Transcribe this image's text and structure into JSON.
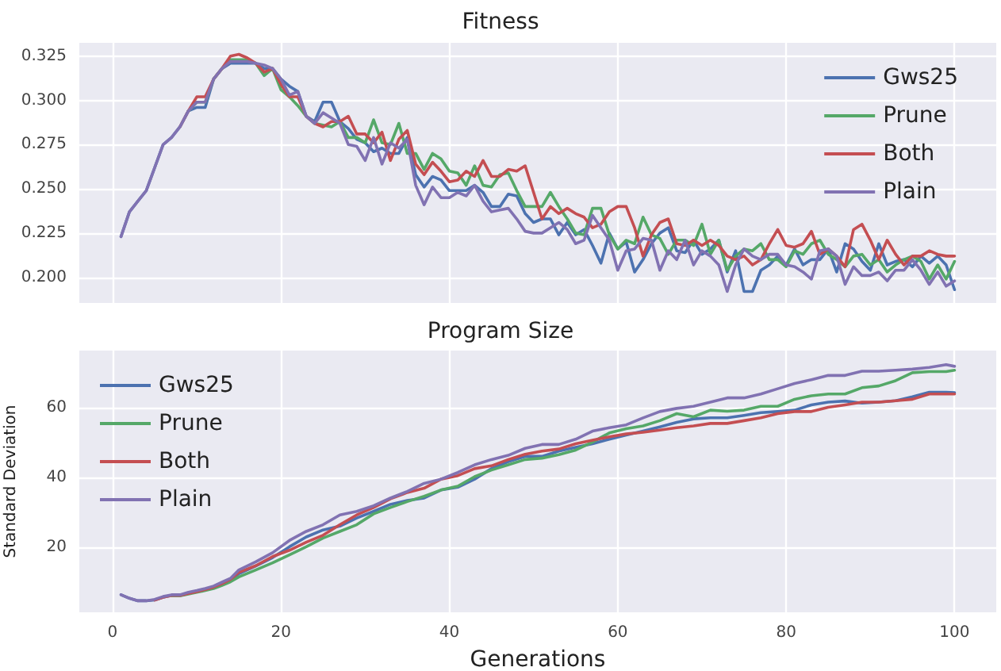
{
  "chart_data": [
    {
      "type": "line",
      "title": "Fitness",
      "xlim": [
        -3.95,
        104.95
      ],
      "xticks": [
        0,
        20,
        40,
        60,
        80,
        100
      ],
      "ylim": [
        0.1855,
        0.3325
      ],
      "yticks": [
        {
          "value": 0.2,
          "label": "0.200"
        },
        {
          "value": 0.225,
          "label": "0.225"
        },
        {
          "value": 0.25,
          "label": "0.250"
        },
        {
          "value": 0.275,
          "label": "0.275"
        },
        {
          "value": 0.3,
          "label": "0.300"
        },
        {
          "value": 0.325,
          "label": "0.325"
        }
      ],
      "tick_labels": "y",
      "grid": true,
      "legend": "top right",
      "marker": "none",
      "line_style": "solid",
      "x": [
        1,
        2,
        3,
        4,
        5,
        6,
        7,
        8,
        9,
        10,
        11,
        12,
        13,
        14,
        15,
        16,
        17,
        18,
        19,
        20,
        21,
        22,
        23,
        24,
        25,
        26,
        27,
        28,
        29,
        30,
        31,
        32,
        33,
        34,
        35,
        36,
        37,
        38,
        39,
        40,
        41,
        42,
        43,
        44,
        45,
        46,
        47,
        48,
        49,
        50,
        51,
        52,
        53,
        54,
        55,
        56,
        57,
        58,
        59,
        60,
        61,
        62,
        63,
        64,
        65,
        66,
        67,
        68,
        69,
        70,
        71,
        72,
        73,
        74,
        75,
        76,
        77,
        78,
        79,
        80,
        81,
        82,
        83,
        84,
        85,
        86,
        87,
        88,
        89,
        90,
        91,
        92,
        93,
        94,
        95,
        96,
        97,
        98,
        99,
        100
      ],
      "series": [
        {
          "name": "Gws25",
          "color": "#4c72b0",
          "values": [
            0.223,
            0.237,
            0.243,
            0.249,
            0.262,
            0.275,
            0.279,
            0.285,
            0.294,
            0.296,
            0.296,
            0.312,
            0.318,
            0.321,
            0.321,
            0.321,
            0.321,
            0.318,
            0.318,
            0.312,
            0.308,
            0.305,
            0.291,
            0.288,
            0.299,
            0.299,
            0.288,
            0.284,
            0.278,
            0.276,
            0.271,
            0.273,
            0.27,
            0.27,
            0.279,
            0.258,
            0.251,
            0.257,
            0.255,
            0.249,
            0.249,
            0.249,
            0.252,
            0.248,
            0.24,
            0.24,
            0.247,
            0.246,
            0.236,
            0.231,
            0.233,
            0.233,
            0.224,
            0.231,
            0.224,
            0.227,
            0.218,
            0.208,
            0.225,
            0.216,
            0.22,
            0.203,
            0.21,
            0.219,
            0.225,
            0.228,
            0.215,
            0.214,
            0.221,
            0.213,
            0.216,
            0.221,
            0.203,
            0.215,
            0.192,
            0.192,
            0.204,
            0.207,
            0.212,
            0.207,
            0.216,
            0.207,
            0.21,
            0.21,
            0.216,
            0.203,
            0.219,
            0.216,
            0.209,
            0.204,
            0.219,
            0.207,
            0.209,
            0.21,
            0.206,
            0.212,
            0.208,
            0.212,
            0.207,
            0.193
          ]
        },
        {
          "name": "Prune",
          "color": "#55a868",
          "values": [
            null,
            null,
            null,
            null,
            null,
            null,
            null,
            null,
            0.294,
            0.299,
            0.299,
            0.312,
            0.318,
            0.323,
            0.323,
            0.323,
            0.321,
            0.314,
            0.318,
            0.306,
            0.302,
            0.297,
            0.291,
            0.287,
            0.286,
            0.285,
            0.288,
            0.279,
            0.279,
            0.276,
            0.289,
            0.276,
            0.275,
            0.287,
            0.27,
            0.27,
            0.261,
            0.27,
            0.267,
            0.26,
            0.259,
            0.252,
            0.263,
            0.252,
            0.251,
            0.258,
            0.259,
            0.249,
            0.24,
            0.24,
            0.24,
            0.248,
            0.24,
            0.233,
            0.225,
            0.224,
            0.239,
            0.239,
            0.224,
            0.216,
            0.221,
            0.219,
            0.234,
            0.224,
            0.222,
            0.213,
            0.221,
            0.221,
            0.218,
            0.23,
            0.213,
            0.221,
            0.204,
            0.212,
            0.216,
            0.215,
            0.219,
            0.21,
            0.21,
            0.206,
            0.215,
            0.213,
            0.219,
            0.221,
            0.213,
            0.21,
            0.206,
            0.212,
            0.213,
            0.207,
            0.21,
            0.203,
            0.207,
            0.21,
            0.212,
            0.209,
            0.199,
            0.207,
            0.199,
            0.209
          ]
        },
        {
          "name": "Both",
          "color": "#c44e52",
          "values": [
            null,
            null,
            null,
            null,
            null,
            null,
            null,
            0.285,
            0.294,
            0.302,
            0.302,
            0.312,
            0.318,
            0.325,
            0.326,
            0.324,
            0.321,
            0.316,
            0.318,
            0.309,
            0.302,
            0.302,
            0.291,
            0.287,
            0.285,
            0.288,
            0.288,
            0.291,
            0.281,
            0.281,
            0.276,
            0.282,
            0.266,
            0.278,
            0.283,
            0.264,
            0.258,
            0.265,
            0.26,
            0.254,
            0.255,
            0.26,
            0.257,
            0.266,
            0.257,
            0.257,
            0.261,
            0.26,
            0.263,
            0.248,
            0.233,
            0.24,
            0.236,
            0.239,
            0.236,
            0.234,
            0.228,
            0.23,
            0.237,
            0.24,
            0.24,
            0.228,
            0.212,
            0.224,
            0.231,
            0.233,
            0.219,
            0.218,
            0.221,
            0.218,
            0.221,
            0.218,
            0.212,
            0.21,
            0.212,
            0.207,
            0.21,
            0.219,
            0.227,
            0.218,
            0.217,
            0.219,
            0.226,
            0.213,
            0.216,
            0.212,
            0.206,
            0.227,
            0.23,
            0.221,
            0.21,
            0.221,
            0.213,
            0.207,
            0.212,
            0.212,
            0.215,
            0.213,
            0.212,
            0.212
          ]
        },
        {
          "name": "Plain",
          "color": "#8172b2",
          "values": [
            0.223,
            0.237,
            0.243,
            0.249,
            0.262,
            0.275,
            0.279,
            0.285,
            0.294,
            0.299,
            0.299,
            0.312,
            0.318,
            0.322,
            0.322,
            0.322,
            0.321,
            0.32,
            0.318,
            0.312,
            0.303,
            0.305,
            0.291,
            0.287,
            0.293,
            0.29,
            0.287,
            0.275,
            0.274,
            0.266,
            0.279,
            0.264,
            0.276,
            0.273,
            0.278,
            0.252,
            0.241,
            0.251,
            0.245,
            0.245,
            0.248,
            0.246,
            0.252,
            0.243,
            0.237,
            0.238,
            0.239,
            0.233,
            0.226,
            0.225,
            0.225,
            0.228,
            0.231,
            0.227,
            0.219,
            0.221,
            0.235,
            0.228,
            0.221,
            0.204,
            0.215,
            0.216,
            0.222,
            0.221,
            0.204,
            0.215,
            0.21,
            0.221,
            0.207,
            0.215,
            0.212,
            0.207,
            0.192,
            0.207,
            0.216,
            0.212,
            0.21,
            0.213,
            0.213,
            0.207,
            0.206,
            0.203,
            0.199,
            0.215,
            0.216,
            0.212,
            0.196,
            0.206,
            0.201,
            0.201,
            0.203,
            0.198,
            0.204,
            0.204,
            0.21,
            0.204,
            0.196,
            0.203,
            0.195,
            0.198
          ]
        }
      ]
    },
    {
      "type": "line",
      "title": "Program Size",
      "xlabel": "Generations",
      "ylabel": "Standard Deviation",
      "xlim": [
        -3.95,
        104.95
      ],
      "xticks": [
        0,
        20,
        40,
        60,
        80,
        100
      ],
      "ylim": [
        1.5,
        76.2
      ],
      "yticks": [
        20,
        40,
        60
      ],
      "grid": true,
      "legend": "top left",
      "marker": "none",
      "line_style": "solid",
      "x": [
        1,
        2,
        3,
        4,
        5,
        6,
        7,
        8,
        9,
        10,
        11,
        12,
        13,
        14,
        15,
        17,
        19,
        21,
        23,
        25,
        27,
        29,
        31,
        33,
        35,
        37,
        39,
        41,
        43,
        45,
        47,
        49,
        51,
        53,
        55,
        57,
        59,
        61,
        63,
        65,
        67,
        69,
        71,
        73,
        75,
        77,
        79,
        81,
        83,
        85,
        87,
        89,
        91,
        93,
        95,
        97,
        99,
        100
      ],
      "series": [
        {
          "name": "Gws25",
          "color": "#4c72b0",
          "values": [
            6.5,
            5.5,
            4.8,
            4.8,
            5.0,
            5.8,
            6.3,
            6.3,
            6.9,
            7.4,
            8.0,
            8.7,
            9.6,
            10.6,
            12.5,
            14.7,
            17.1,
            20.2,
            23.0,
            25.0,
            26.1,
            28.4,
            30.3,
            32.3,
            33.4,
            34.1,
            36.4,
            37.2,
            39.5,
            42.5,
            44.5,
            46.0,
            46.0,
            47.5,
            48.6,
            49.6,
            50.9,
            52.1,
            53.2,
            54.4,
            55.7,
            56.7,
            57.0,
            57.0,
            57.7,
            58.5,
            58.8,
            59.2,
            60.7,
            61.5,
            61.8,
            61.2,
            61.5,
            61.9,
            63.0,
            64.3,
            64.3,
            64.2
          ]
        },
        {
          "name": "Prune",
          "color": "#55a868",
          "values": [
            null,
            null,
            null,
            null,
            null,
            null,
            6.2,
            6.2,
            6.7,
            7.2,
            7.7,
            8.3,
            9.2,
            10.2,
            11.6,
            13.6,
            15.6,
            17.9,
            20.2,
            22.7,
            24.6,
            26.5,
            29.6,
            31.4,
            33.1,
            34.6,
            36.4,
            37.5,
            40.2,
            42.1,
            43.6,
            45.1,
            45.5,
            46.5,
            47.8,
            50.1,
            52.7,
            53.9,
            54.7,
            56.2,
            58.2,
            57.3,
            59.2,
            58.9,
            59.2,
            60.3,
            60.3,
            62.3,
            63.3,
            63.8,
            63.8,
            65.6,
            66.1,
            67.6,
            69.9,
            70.2,
            70.2,
            70.6
          ]
        },
        {
          "name": "Both",
          "color": "#c44e52",
          "values": [
            null,
            null,
            null,
            null,
            5.0,
            5.8,
            6.3,
            6.3,
            6.9,
            7.4,
            8.0,
            8.7,
            9.7,
            10.9,
            12.9,
            14.8,
            17.4,
            19.2,
            21.5,
            23.5,
            26.5,
            29.3,
            31.4,
            33.9,
            35.7,
            36.9,
            39.5,
            40.5,
            42.5,
            43.3,
            45.1,
            46.6,
            47.5,
            48.1,
            49.6,
            50.6,
            51.6,
            52.4,
            52.9,
            53.5,
            54.2,
            54.7,
            55.4,
            55.4,
            56.2,
            57.0,
            58.2,
            58.8,
            58.8,
            60.0,
            60.7,
            61.5,
            61.5,
            61.9,
            62.3,
            63.8,
            63.8,
            63.8
          ]
        },
        {
          "name": "Plain",
          "color": "#8172b2",
          "values": [
            6.5,
            5.5,
            4.8,
            4.8,
            5.2,
            6.0,
            6.5,
            6.5,
            7.2,
            7.7,
            8.3,
            9.0,
            10.1,
            11.2,
            13.6,
            15.9,
            18.5,
            22.0,
            24.6,
            26.5,
            29.3,
            30.3,
            31.9,
            34.1,
            36.0,
            38.3,
            39.5,
            41.4,
            43.6,
            45.1,
            46.3,
            48.3,
            49.4,
            49.4,
            50.9,
            53.2,
            54.2,
            55.0,
            57.0,
            58.8,
            59.7,
            60.3,
            61.5,
            62.7,
            62.7,
            63.8,
            65.3,
            66.8,
            67.9,
            69.1,
            69.1,
            70.3,
            70.3,
            70.6,
            70.9,
            71.4,
            72.2,
            71.7
          ]
        }
      ]
    }
  ]
}
